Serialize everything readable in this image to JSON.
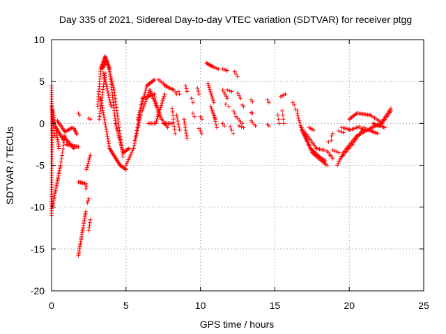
{
  "chart_data": {
    "type": "scatter",
    "title": "Day 335 of 2021, Sidereal Day-to-day VTEC variation (SDTVAR) for receiver ptgg",
    "xlabel": "GPS time / hours",
    "ylabel": "SDTVAR / TECUs",
    "xlim": [
      0,
      25
    ],
    "ylim": [
      -20,
      10
    ],
    "x_ticks": [
      0,
      5,
      10,
      15,
      20,
      25
    ],
    "y_ticks": [
      -20,
      -15,
      -10,
      -5,
      0,
      5,
      10
    ],
    "x_tick_labels": [
      "0",
      "5",
      "10",
      "15",
      "20",
      "25"
    ],
    "y_tick_labels": [
      "-20",
      "-15",
      "-10",
      "-5",
      "0",
      "5",
      "10"
    ],
    "grid": true,
    "marker": "plus",
    "color": "#ff0000",
    "segments": [
      {
        "x0": 0.0,
        "y0": 4.5,
        "x1": 0.05,
        "y1": 0.0,
        "n": 18
      },
      {
        "x0": 0.05,
        "y0": 0.0,
        "x1": 0.0,
        "y1": -11.0,
        "n": 40
      },
      {
        "x0": 0.0,
        "y0": 2.0,
        "x1": 0.2,
        "y1": -1.5,
        "n": 12
      },
      {
        "x0": 0.05,
        "y0": -10.0,
        "x1": 0.6,
        "y1": -5.0,
        "n": 26
      },
      {
        "x0": 0.6,
        "y0": -5.0,
        "x1": 0.9,
        "y1": -1.5,
        "n": 10
      },
      {
        "x0": 0.1,
        "y0": 1.5,
        "x1": 0.5,
        "y1": -3.0,
        "n": 18
      },
      {
        "x0": 0.3,
        "y0": -0.5,
        "x1": 0.8,
        "y1": -2.0,
        "n": 12
      },
      {
        "x0": 0.4,
        "y0": 0.3,
        "x1": 0.9,
        "y1": -1.0,
        "n": 10
      },
      {
        "x0": 0.8,
        "y0": -1.5,
        "x1": 1.5,
        "y1": -3.0,
        "n": 14
      },
      {
        "x0": 0.9,
        "y0": -1.0,
        "x1": 1.4,
        "y1": -0.5,
        "n": 8
      },
      {
        "x0": 1.0,
        "y0": -2.5,
        "x1": 1.8,
        "y1": -2.8,
        "n": 12
      },
      {
        "x0": 1.5,
        "y0": -0.6,
        "x1": 1.7,
        "y1": -1.3,
        "n": 6
      },
      {
        "x0": 1.8,
        "y0": -15.8,
        "x1": 2.3,
        "y1": -10.5,
        "n": 26
      },
      {
        "x0": 1.8,
        "y0": -7.0,
        "x1": 2.3,
        "y1": -7.2,
        "n": 8
      },
      {
        "x0": 1.8,
        "y0": 1.2,
        "x1": 1.9,
        "y1": 1.0,
        "n": 2
      },
      {
        "x0": 2.3,
        "y0": -7.8,
        "x1": 2.35,
        "y1": -7.5,
        "n": 2
      },
      {
        "x0": 2.4,
        "y0": -9.5,
        "x1": 2.5,
        "y1": -9.0,
        "n": 3
      },
      {
        "x0": 2.35,
        "y0": -5.5,
        "x1": 2.6,
        "y1": -3.8,
        "n": 8
      },
      {
        "x0": 2.5,
        "y0": -12.8,
        "x1": 2.6,
        "y1": -11.5,
        "n": 5
      },
      {
        "x0": 2.5,
        "y0": 0.6,
        "x1": 2.6,
        "y1": 0.5,
        "n": 2
      },
      {
        "x0": 3.1,
        "y0": 2.0,
        "x1": 3.3,
        "y1": 6.5,
        "n": 16
      },
      {
        "x0": 3.3,
        "y0": 6.5,
        "x1": 3.6,
        "y1": 8.0,
        "n": 12
      },
      {
        "x0": 3.6,
        "y0": 8.0,
        "x1": 3.9,
        "y1": 6.5,
        "n": 12
      },
      {
        "x0": 3.9,
        "y0": 6.5,
        "x1": 4.3,
        "y1": 0.0,
        "n": 22
      },
      {
        "x0": 4.3,
        "y0": 0.0,
        "x1": 4.8,
        "y1": -3.5,
        "n": 18
      },
      {
        "x0": 4.8,
        "y0": -3.5,
        "x1": 5.2,
        "y1": -3.0,
        "n": 8
      },
      {
        "x0": 3.2,
        "y0": 0.5,
        "x1": 3.6,
        "y1": 6.0,
        "n": 18
      },
      {
        "x0": 3.5,
        "y0": 6.0,
        "x1": 4.0,
        "y1": 2.0,
        "n": 16
      },
      {
        "x0": 3.3,
        "y0": 3.0,
        "x1": 3.9,
        "y1": -3.0,
        "n": 22
      },
      {
        "x0": 3.9,
        "y0": -3.0,
        "x1": 4.6,
        "y1": -5.0,
        "n": 18
      },
      {
        "x0": 4.6,
        "y0": -5.0,
        "x1": 5.0,
        "y1": -5.5,
        "n": 8
      },
      {
        "x0": 3.4,
        "y0": 6.5,
        "x1": 3.7,
        "y1": 7.5,
        "n": 10
      },
      {
        "x0": 3.7,
        "y0": 7.5,
        "x1": 4.2,
        "y1": 4.0,
        "n": 14
      },
      {
        "x0": 4.2,
        "y0": 4.0,
        "x1": 4.8,
        "y1": -4.0,
        "n": 24
      },
      {
        "x0": 5.0,
        "y0": -5.0,
        "x1": 5.5,
        "y1": -3.0,
        "n": 10
      },
      {
        "x0": 5.5,
        "y0": -3.0,
        "x1": 6.0,
        "y1": 1.0,
        "n": 14
      },
      {
        "x0": 5.6,
        "y0": -2.0,
        "x1": 6.1,
        "y1": 3.0,
        "n": 14
      },
      {
        "x0": 5.8,
        "y0": 0.5,
        "x1": 6.4,
        "y1": 4.5,
        "n": 16
      },
      {
        "x0": 6.4,
        "y0": 4.5,
        "x1": 6.9,
        "y1": 5.2,
        "n": 10
      },
      {
        "x0": 6.1,
        "y0": 1.5,
        "x1": 6.6,
        "y1": 4.0,
        "n": 10
      },
      {
        "x0": 6.6,
        "y0": 4.0,
        "x1": 7.4,
        "y1": 0.5,
        "n": 18
      },
      {
        "x0": 7.4,
        "y0": 0.5,
        "x1": 7.8,
        "y1": -0.5,
        "n": 6
      },
      {
        "x0": 6.2,
        "y0": 3.0,
        "x1": 6.9,
        "y1": 3.5,
        "n": 10
      },
      {
        "x0": 6.9,
        "y0": 3.5,
        "x1": 7.2,
        "y1": 1.0,
        "n": 8
      },
      {
        "x0": 6.5,
        "y0": 0.0,
        "x1": 7.0,
        "y1": 0.0,
        "n": 6
      },
      {
        "x0": 7.0,
        "y0": 0.0,
        "x1": 7.6,
        "y1": 3.5,
        "n": 14
      },
      {
        "x0": 7.5,
        "y0": 0.0,
        "x1": 8.1,
        "y1": 0.0,
        "n": 8
      },
      {
        "x0": 7.6,
        "y0": 4.5,
        "x1": 8.2,
        "y1": 4.0,
        "n": 8
      },
      {
        "x0": 7.2,
        "y0": 5.2,
        "x1": 7.7,
        "y1": 4.5,
        "n": 6
      },
      {
        "x0": 8.2,
        "y0": 4.0,
        "x1": 8.4,
        "y1": 3.5,
        "n": 3
      },
      {
        "x0": 8.1,
        "y0": 1.8,
        "x1": 8.3,
        "y1": -1.2,
        "n": 8
      },
      {
        "x0": 8.4,
        "y0": 1.0,
        "x1": 8.6,
        "y1": -0.8,
        "n": 6
      },
      {
        "x0": 8.5,
        "y0": 3.8,
        "x1": 8.6,
        "y1": 3.5,
        "n": 2
      },
      {
        "x0": 9.0,
        "y0": 4.5,
        "x1": 9.1,
        "y1": 3.8,
        "n": 3
      },
      {
        "x0": 8.9,
        "y0": 0.5,
        "x1": 9.1,
        "y1": -1.8,
        "n": 8
      },
      {
        "x0": 9.4,
        "y0": 3.0,
        "x1": 9.5,
        "y1": 2.5,
        "n": 2
      },
      {
        "x0": 9.5,
        "y0": 1.2,
        "x1": 9.6,
        "y1": 0.8,
        "n": 2
      },
      {
        "x0": 9.8,
        "y0": 4.2,
        "x1": 9.9,
        "y1": 3.5,
        "n": 3
      },
      {
        "x0": 10.0,
        "y0": 0.8,
        "x1": 10.1,
        "y1": 0.5,
        "n": 2
      },
      {
        "x0": 9.9,
        "y0": -0.6,
        "x1": 10.1,
        "y1": -1.2,
        "n": 3
      },
      {
        "x0": 10.4,
        "y0": 7.2,
        "x1": 10.8,
        "y1": 6.8,
        "n": 8
      },
      {
        "x0": 10.8,
        "y0": 6.8,
        "x1": 11.2,
        "y1": 6.5,
        "n": 5
      },
      {
        "x0": 10.5,
        "y0": 4.8,
        "x1": 10.9,
        "y1": 2.5,
        "n": 10
      },
      {
        "x0": 10.7,
        "y0": 2.0,
        "x1": 11.0,
        "y1": 0.5,
        "n": 8
      },
      {
        "x0": 10.9,
        "y0": 1.0,
        "x1": 11.1,
        "y1": -0.5,
        "n": 5
      },
      {
        "x0": 11.5,
        "y0": 6.5,
        "x1": 11.8,
        "y1": 6.3,
        "n": 4
      },
      {
        "x0": 11.5,
        "y0": 4.0,
        "x1": 11.8,
        "y1": 3.0,
        "n": 5
      },
      {
        "x0": 11.8,
        "y0": 4.0,
        "x1": 12.1,
        "y1": 3.8,
        "n": 3
      },
      {
        "x0": 11.7,
        "y0": 2.3,
        "x1": 11.9,
        "y1": 2.0,
        "n": 2
      },
      {
        "x0": 11.5,
        "y0": 0.0,
        "x1": 11.6,
        "y1": -0.3,
        "n": 2
      },
      {
        "x0": 12.0,
        "y0": -0.4,
        "x1": 12.2,
        "y1": -1.2,
        "n": 3
      },
      {
        "x0": 12.3,
        "y0": 6.2,
        "x1": 12.5,
        "y1": 5.6,
        "n": 3
      },
      {
        "x0": 12.2,
        "y0": 1.5,
        "x1": 12.3,
        "y1": 1.2,
        "n": 2
      },
      {
        "x0": 12.5,
        "y0": 3.6,
        "x1": 12.7,
        "y1": 3.0,
        "n": 3
      },
      {
        "x0": 12.4,
        "y0": 0.8,
        "x1": 12.8,
        "y1": 0.0,
        "n": 5
      },
      {
        "x0": 12.6,
        "y0": -0.3,
        "x1": 12.9,
        "y1": -0.5,
        "n": 3
      },
      {
        "x0": 12.8,
        "y0": 2.2,
        "x1": 12.9,
        "y1": 2.0,
        "n": 2
      },
      {
        "x0": 13.4,
        "y0": 2.8,
        "x1": 13.5,
        "y1": 2.6,
        "n": 2
      },
      {
        "x0": 13.4,
        "y0": 1.3,
        "x1": 13.5,
        "y1": 1.2,
        "n": 2
      },
      {
        "x0": 13.4,
        "y0": 0.3,
        "x1": 13.7,
        "y1": -0.3,
        "n": 4
      },
      {
        "x0": 14.5,
        "y0": 2.8,
        "x1": 14.6,
        "y1": 2.5,
        "n": 2
      },
      {
        "x0": 14.5,
        "y0": -0.1,
        "x1": 14.6,
        "y1": -0.3,
        "n": 2
      },
      {
        "x0": 15.2,
        "y0": 1.0,
        "x1": 15.3,
        "y1": 0.0,
        "n": 3
      },
      {
        "x0": 15.4,
        "y0": 3.2,
        "x1": 15.7,
        "y1": 3.5,
        "n": 4
      },
      {
        "x0": 15.5,
        "y0": 1.5,
        "x1": 15.6,
        "y1": 0.0,
        "n": 4
      },
      {
        "x0": 16.2,
        "y0": 2.5,
        "x1": 16.3,
        "y1": 2.2,
        "n": 2
      },
      {
        "x0": 16.4,
        "y0": 1.7,
        "x1": 16.5,
        "y1": 1.5,
        "n": 2
      },
      {
        "x0": 16.5,
        "y0": 1.2,
        "x1": 16.8,
        "y1": -0.8,
        "n": 8
      },
      {
        "x0": 16.8,
        "y0": -0.8,
        "x1": 17.4,
        "y1": -3.0,
        "n": 14
      },
      {
        "x0": 17.4,
        "y0": -3.0,
        "x1": 18.0,
        "y1": -4.0,
        "n": 12
      },
      {
        "x0": 18.0,
        "y0": -4.0,
        "x1": 18.4,
        "y1": -4.5,
        "n": 6
      },
      {
        "x0": 16.8,
        "y0": -0.5,
        "x1": 17.5,
        "y1": -3.5,
        "n": 14
      },
      {
        "x0": 17.5,
        "y0": -3.5,
        "x1": 18.5,
        "y1": -5.0,
        "n": 14
      },
      {
        "x0": 17.0,
        "y0": -1.0,
        "x1": 17.8,
        "y1": -3.0,
        "n": 12
      },
      {
        "x0": 17.8,
        "y0": -3.0,
        "x1": 18.3,
        "y1": -3.2,
        "n": 6
      },
      {
        "x0": 17.3,
        "y0": -0.5,
        "x1": 17.6,
        "y1": -0.8,
        "n": 4
      },
      {
        "x0": 18.5,
        "y0": -3.3,
        "x1": 18.9,
        "y1": -4.2,
        "n": 6
      },
      {
        "x0": 18.9,
        "y0": -3.2,
        "x1": 19.3,
        "y1": -3.5,
        "n": 4
      },
      {
        "x0": 18.6,
        "y0": -2.2,
        "x1": 18.8,
        "y1": -2.0,
        "n": 2
      },
      {
        "x0": 18.8,
        "y0": -1.5,
        "x1": 18.9,
        "y1": -1.2,
        "n": 2
      },
      {
        "x0": 19.2,
        "y0": -5.0,
        "x1": 19.6,
        "y1": -3.5,
        "n": 8
      },
      {
        "x0": 19.6,
        "y0": -3.5,
        "x1": 20.5,
        "y1": -1.5,
        "n": 14
      },
      {
        "x0": 20.5,
        "y0": -1.5,
        "x1": 21.5,
        "y1": -0.5,
        "n": 12
      },
      {
        "x0": 21.5,
        "y0": -0.5,
        "x1": 22.2,
        "y1": 0.0,
        "n": 10
      },
      {
        "x0": 22.2,
        "y0": 0.0,
        "x1": 22.8,
        "y1": 1.5,
        "n": 10
      },
      {
        "x0": 19.5,
        "y0": -4.0,
        "x1": 20.2,
        "y1": -2.5,
        "n": 10
      },
      {
        "x0": 20.2,
        "y0": -2.5,
        "x1": 21.0,
        "y1": -0.5,
        "n": 12
      },
      {
        "x0": 19.3,
        "y0": -0.9,
        "x1": 19.6,
        "y1": -1.1,
        "n": 3
      },
      {
        "x0": 19.5,
        "y0": -0.5,
        "x1": 20.0,
        "y1": -0.7,
        "n": 6
      },
      {
        "x0": 20.0,
        "y0": -0.8,
        "x1": 20.7,
        "y1": -0.4,
        "n": 8
      },
      {
        "x0": 20.8,
        "y0": -0.6,
        "x1": 21.3,
        "y1": -0.8,
        "n": 6
      },
      {
        "x0": 21.3,
        "y0": -0.8,
        "x1": 21.9,
        "y1": -1.2,
        "n": 8
      },
      {
        "x0": 20.0,
        "y0": 0.5,
        "x1": 20.5,
        "y1": 1.2,
        "n": 8
      },
      {
        "x0": 20.5,
        "y0": 1.2,
        "x1": 21.4,
        "y1": 1.0,
        "n": 12
      },
      {
        "x0": 21.4,
        "y0": 1.0,
        "x1": 22.1,
        "y1": 0.2,
        "n": 8
      },
      {
        "x0": 21.6,
        "y0": 0.0,
        "x1": 22.4,
        "y1": -0.5,
        "n": 10
      },
      {
        "x0": 22.0,
        "y0": -0.3,
        "x1": 22.8,
        "y1": 1.8,
        "n": 12
      }
    ]
  }
}
